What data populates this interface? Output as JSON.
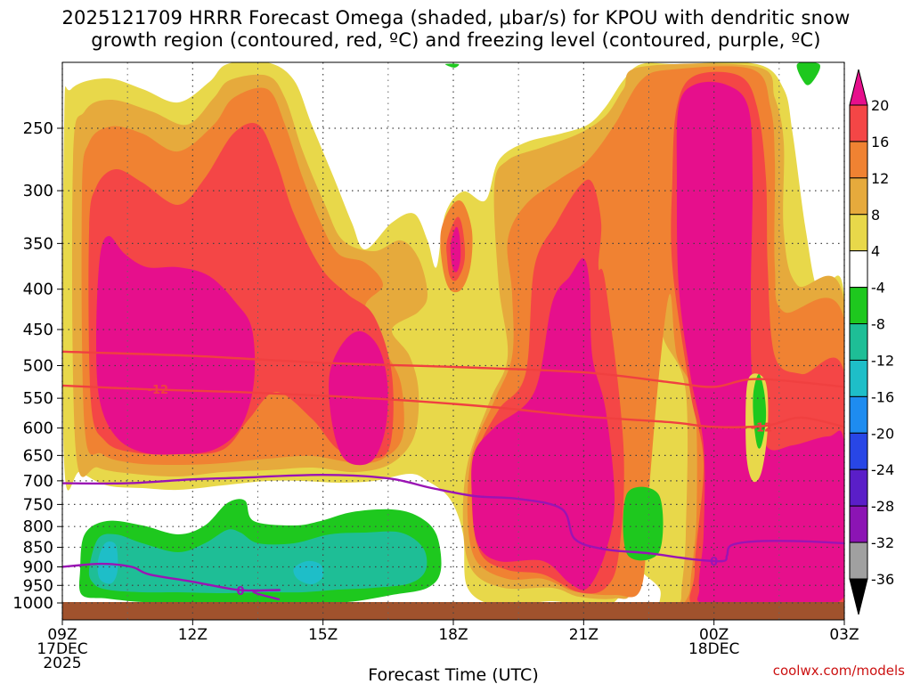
{
  "title_lines": [
    "2025121709 HRRR Forecast Omega (shaded, μbar/s) for KPOU with dendritic snow",
    "growth region (contoured, red, ºC) and freezing level (contoured, purple, ºC)"
  ],
  "credit": "coolwx.com/models",
  "chart_data": {
    "type": "heatmap",
    "title": "2025121709 HRRR Forecast Omega (shaded, μbar/s) for KPOU with dendritic snow growth region (contoured, red, ºC) and freezing level (contoured, purple, ºC)",
    "xlabel": "Forecast Time (UTC)",
    "ylabel": "",
    "y_scale": "log (pressure, hPa)",
    "ylim": [
      1000,
      200
    ],
    "grid": true,
    "x_ticks": [
      {
        "hour": 9,
        "lines": [
          "09Z",
          "17DEC",
          "2025"
        ]
      },
      {
        "hour": 12,
        "lines": [
          "12Z"
        ]
      },
      {
        "hour": 15,
        "lines": [
          "15Z"
        ]
      },
      {
        "hour": 18,
        "lines": [
          "18Z"
        ]
      },
      {
        "hour": 21,
        "lines": [
          "21Z"
        ]
      },
      {
        "hour": 24,
        "lines": [
          "00Z",
          "18DEC"
        ]
      },
      {
        "hour": 27,
        "lines": [
          "03Z"
        ]
      }
    ],
    "xlim_hours": [
      9,
      27
    ],
    "y_ticks": [
      250,
      300,
      350,
      400,
      450,
      500,
      550,
      600,
      650,
      700,
      750,
      800,
      850,
      900,
      950,
      1000
    ],
    "colorbar": {
      "labels": [
        20,
        16,
        12,
        8,
        4,
        -4,
        -8,
        -12,
        -16,
        -20,
        -24,
        -28,
        -32,
        -36
      ],
      "colors": [
        "#e60f8c",
        "#f44646",
        "#f08232",
        "#e6aa3c",
        "#e8d84a",
        "#ffffff",
        "#1ec81e",
        "#1ebe96",
        "#1ebec8",
        "#1e8cf0",
        "#2846e6",
        "#5a1ec8",
        "#8c14b4",
        "#a0a0a0",
        "#000000"
      ]
    },
    "omega_levels": [
      {
        "level": 4,
        "color": "#e8d84a"
      },
      {
        "level": 8,
        "color": "#e6aa3c"
      },
      {
        "level": 12,
        "color": "#f08232"
      },
      {
        "level": 16,
        "color": "#f44646"
      },
      {
        "level": 20,
        "color": "#e60f8c"
      },
      {
        "level": -4,
        "color": "#1ec81e"
      },
      {
        "level": -8,
        "color": "#1ebe96"
      },
      {
        "level": -12,
        "color": "#1ebec8"
      }
    ],
    "dendritic_contours": {
      "color": "#f04040",
      "label": "-12",
      "lines": [
        {
          "name": "upper",
          "points": [
            [
              9,
              480
            ],
            [
              12,
              486
            ],
            [
              15,
              496
            ],
            [
              18,
              502
            ],
            [
              21,
              510
            ],
            [
              23,
              525
            ],
            [
              24,
              532
            ],
            [
              25,
              520
            ],
            [
              27,
              532
            ]
          ]
        },
        {
          "name": "lower",
          "points": [
            [
              9,
              530
            ],
            [
              11,
              536
            ],
            [
              13,
              540
            ],
            [
              15,
              546
            ],
            [
              17,
              554
            ],
            [
              19,
              565
            ],
            [
              21,
              580
            ],
            [
              23,
              590
            ],
            [
              24,
              598
            ],
            [
              25.2,
              596
            ],
            [
              26,
              582
            ],
            [
              27,
              598
            ]
          ]
        }
      ]
    },
    "freezing_level": {
      "color": "#9a14b4",
      "label": "0",
      "lines": [
        {
          "name": "main",
          "points": [
            [
              9,
              705
            ],
            [
              10.5,
              705
            ],
            [
              12,
              697
            ],
            [
              13,
              694
            ],
            [
              15,
              688
            ],
            [
              16.5,
              695
            ],
            [
              17.5,
              715
            ],
            [
              18.5,
              732
            ],
            [
              19.5,
              738
            ],
            [
              20.5,
              760
            ],
            [
              20.8,
              830
            ],
            [
              21.5,
              855
            ],
            [
              22.5,
              865
            ],
            [
              23.5,
              880
            ],
            [
              24.2,
              885
            ],
            [
              24.3,
              870
            ],
            [
              24.4,
              845
            ],
            [
              25,
              835
            ],
            [
              26,
              835
            ],
            [
              27,
              840
            ]
          ]
        },
        {
          "name": "lower",
          "points": [
            [
              9,
              900
            ],
            [
              9.9,
              892
            ],
            [
              10.6,
              900
            ],
            [
              11,
              920
            ],
            [
              12,
              940
            ],
            [
              13,
              962
            ],
            [
              13.5,
              964
            ],
            [
              14,
              963
            ],
            [
              13.4,
              968
            ],
            [
              14,
              990
            ]
          ]
        }
      ]
    },
    "surface": {
      "color": "#a0522d",
      "pressure": 1000
    }
  }
}
